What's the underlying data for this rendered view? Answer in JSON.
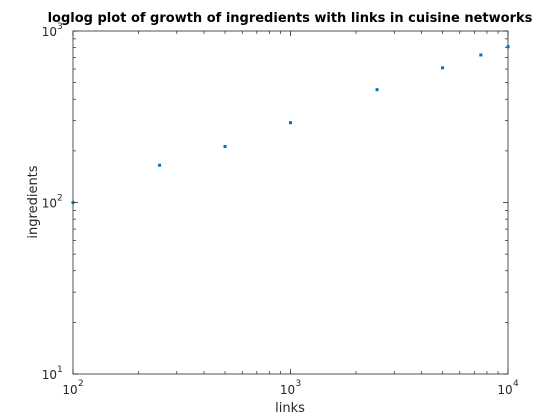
{
  "chart_data": {
    "type": "scatter",
    "title": "loglog plot of growth of ingredients with links in cuisine networks",
    "xlabel": "links",
    "ylabel": "ingredients",
    "xscale": "log",
    "yscale": "log",
    "xlim": [
      100,
      10000
    ],
    "ylim": [
      10,
      1000
    ],
    "x_ticks": [
      {
        "value": 100,
        "base": "10",
        "exp": "2"
      },
      {
        "value": 1000,
        "base": "10",
        "exp": "3"
      },
      {
        "value": 10000,
        "base": "10",
        "exp": "4"
      }
    ],
    "y_ticks": [
      {
        "value": 10,
        "base": "10",
        "exp": "1"
      },
      {
        "value": 100,
        "base": "10",
        "exp": "2"
      },
      {
        "value": 1000,
        "base": "10",
        "exp": "3"
      }
    ],
    "grid": false,
    "marker_color": "#0072bd",
    "series": [
      {
        "x": [
          100,
          250,
          500,
          1000,
          2500,
          5000,
          7500,
          10000
        ],
        "y": [
          100,
          165,
          212,
          292,
          455,
          610,
          725,
          810
        ]
      }
    ]
  }
}
